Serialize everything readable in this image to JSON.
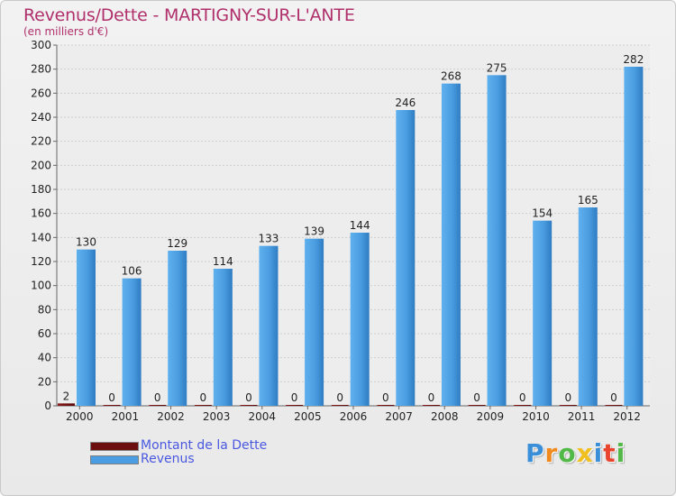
{
  "chart_data": {
    "type": "bar",
    "title": "Revenus/Dette - MARTIGNY-SUR-L'ANTE",
    "subtitle": "(en milliers d'€)",
    "categories": [
      "2000",
      "2001",
      "2002",
      "2003",
      "2004",
      "2005",
      "2006",
      "2007",
      "2008",
      "2009",
      "2010",
      "2011",
      "2012"
    ],
    "series": [
      {
        "name": "Montant de la Dette",
        "color": "#6b0f0f",
        "values": [
          2,
          0,
          0,
          0,
          0,
          0,
          0,
          0,
          0,
          0,
          0,
          0,
          0
        ]
      },
      {
        "name": "Revenus",
        "color": "#4a9de0",
        "values": [
          130,
          106,
          129,
          114,
          133,
          139,
          144,
          246,
          268,
          275,
          154,
          165,
          282
        ]
      }
    ],
    "ylim": [
      0,
      300
    ],
    "yticks": [
      0,
      20,
      40,
      60,
      80,
      100,
      120,
      140,
      160,
      180,
      200,
      220,
      240,
      260,
      280,
      300
    ],
    "xlabel": "",
    "ylabel": "",
    "grid": true,
    "legend_position": "bottom-left"
  },
  "logo": {
    "letters": [
      "P",
      "r",
      "o",
      "x",
      "i",
      "t",
      "i"
    ],
    "colors": [
      "#3a8fd8",
      "#f08a1c",
      "#52b847",
      "#f0c020",
      "#3a8fd8",
      "#e8442e",
      "#52b847"
    ]
  }
}
